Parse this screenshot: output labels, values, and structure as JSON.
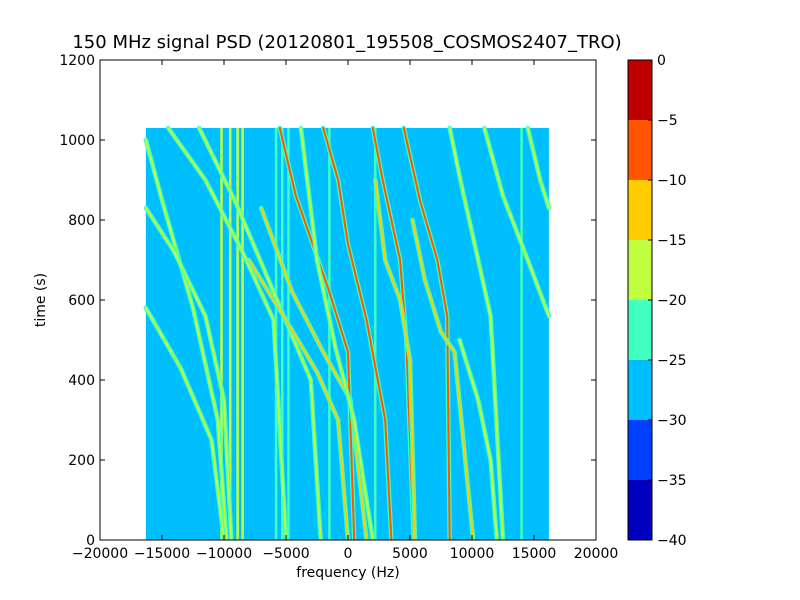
{
  "chart_data": {
    "type": "heatmap",
    "title": "150 MHz signal PSD (20120801_195508_COSMOS2407_TRO)",
    "xlabel": "frequency (Hz)",
    "ylabel": "time (s)",
    "xlim": [
      -20000,
      20000
    ],
    "ylim": [
      0,
      1200
    ],
    "x_ticks": [
      -20000,
      -15000,
      -10000,
      -5000,
      0,
      5000,
      10000,
      15000,
      20000
    ],
    "x_tick_labels": [
      "−20000",
      "−15000",
      "−10000",
      "−5000",
      "0",
      "5000",
      "10000",
      "15000",
      "20000"
    ],
    "y_ticks": [
      0,
      200,
      400,
      600,
      800,
      1000,
      1200
    ],
    "y_tick_labels": [
      "0",
      "200",
      "400",
      "600",
      "800",
      "1000",
      "1200"
    ],
    "data_extent": {
      "x": [
        -16300,
        16200
      ],
      "y": [
        0,
        1030
      ]
    },
    "background_level_db": -27.5,
    "colorbar": {
      "levels": [
        -40,
        -35,
        -30,
        -25,
        -20,
        -15,
        -10,
        -5,
        0
      ],
      "tick_labels": [
        "−40",
        "−35",
        "−30",
        "−25",
        "−20",
        "−15",
        "−10",
        "−5",
        "0"
      ],
      "colors": [
        "#0000bf",
        "#0040ff",
        "#00bfff",
        "#40ffbf",
        "#bfff40",
        "#ffcc00",
        "#ff5500",
        "#bf0000"
      ]
    },
    "vertical_lines": [
      {
        "x": -10200,
        "level_db": -17.5
      },
      {
        "x": -9500,
        "level_db": -17.5
      },
      {
        "x": -8900,
        "level_db": -17.5
      },
      {
        "x": -8500,
        "level_db": -17.5
      },
      {
        "x": -5800,
        "level_db": -22.5
      },
      {
        "x": -5300,
        "level_db": -22.5
      },
      {
        "x": -4800,
        "level_db": -22.5
      },
      {
        "x": -1500,
        "level_db": -22.5
      },
      {
        "x": 2200,
        "level_db": -22.5
      },
      {
        "x": 14000,
        "level_db": -22.5
      }
    ],
    "doppler_traces": [
      {
        "points": [
          [
            -16300,
            1000
          ],
          [
            -15000,
            850
          ],
          [
            -12500,
            580
          ],
          [
            -10500,
            300
          ],
          [
            -9800,
            0
          ]
        ],
        "level_db": -17.5
      },
      {
        "points": [
          [
            -16300,
            830
          ],
          [
            -14000,
            720
          ],
          [
            -11500,
            560
          ],
          [
            -10000,
            350
          ],
          [
            -9400,
            0
          ]
        ],
        "level_db": -17.5
      },
      {
        "points": [
          [
            -16300,
            580
          ],
          [
            -13500,
            430
          ],
          [
            -11000,
            250
          ],
          [
            -10000,
            0
          ]
        ],
        "level_db": -17.5
      },
      {
        "points": [
          [
            -14500,
            1030
          ],
          [
            -11500,
            900
          ],
          [
            -8500,
            720
          ],
          [
            -6000,
            550
          ],
          [
            -5000,
            0
          ]
        ],
        "level_db": -17.5
      },
      {
        "points": [
          [
            -12000,
            1030
          ],
          [
            -9000,
            840
          ],
          [
            -6000,
            620
          ],
          [
            -3000,
            400
          ],
          [
            -2200,
            0
          ]
        ],
        "level_db": -17.5
      },
      {
        "points": [
          [
            -5500,
            1030
          ],
          [
            -4200,
            860
          ],
          [
            -1500,
            620
          ],
          [
            0,
            470
          ],
          [
            500,
            0
          ]
        ],
        "level_db": -7.5
      },
      {
        "points": [
          [
            -7000,
            830
          ],
          [
            -4500,
            620
          ],
          [
            -2000,
            470
          ],
          [
            200,
            350
          ],
          [
            1500,
            0
          ]
        ],
        "level_db": -12.5
      },
      {
        "points": [
          [
            -2000,
            1030
          ],
          [
            -800,
            900
          ],
          [
            0,
            740
          ],
          [
            1500,
            550
          ],
          [
            3000,
            300
          ],
          [
            3500,
            0
          ]
        ],
        "level_db": -7.5
      },
      {
        "points": [
          [
            -8000,
            700
          ],
          [
            -5000,
            550
          ],
          [
            -2500,
            420
          ],
          [
            -800,
            300
          ],
          [
            0,
            0
          ]
        ],
        "level_db": -12.5
      },
      {
        "points": [
          [
            2000,
            1030
          ],
          [
            2800,
            900
          ],
          [
            4200,
            700
          ],
          [
            4700,
            500
          ],
          [
            5300,
            0
          ]
        ],
        "level_db": -7.5
      },
      {
        "points": [
          [
            2200,
            900
          ],
          [
            3000,
            700
          ],
          [
            4200,
            600
          ],
          [
            5000,
            450
          ],
          [
            5400,
            0
          ]
        ],
        "level_db": -12.5
      },
      {
        "points": [
          [
            4500,
            1030
          ],
          [
            5800,
            850
          ],
          [
            7200,
            700
          ],
          [
            8000,
            560
          ],
          [
            8200,
            0
          ]
        ],
        "level_db": -7.5
      },
      {
        "points": [
          [
            5200,
            800
          ],
          [
            6200,
            650
          ],
          [
            7500,
            520
          ],
          [
            8600,
            470
          ],
          [
            10100,
            0
          ]
        ],
        "level_db": -12.5
      },
      {
        "points": [
          [
            8200,
            1030
          ],
          [
            9200,
            880
          ],
          [
            10500,
            700
          ],
          [
            11500,
            560
          ],
          [
            12500,
            0
          ]
        ],
        "level_db": -17.5
      },
      {
        "points": [
          [
            11000,
            1030
          ],
          [
            12500,
            860
          ],
          [
            14500,
            700
          ],
          [
            16200,
            560
          ]
        ],
        "level_db": -17.5
      },
      {
        "points": [
          [
            14500,
            1030
          ],
          [
            15500,
            900
          ],
          [
            16200,
            830
          ]
        ],
        "level_db": -17.5
      },
      {
        "points": [
          [
            -3800,
            1030
          ],
          [
            -2500,
            700
          ],
          [
            -1000,
            480
          ],
          [
            500,
            300
          ],
          [
            2000,
            0
          ]
        ],
        "level_db": -17.5
      },
      {
        "points": [
          [
            9000,
            500
          ],
          [
            10500,
            350
          ],
          [
            11500,
            200
          ],
          [
            12000,
            0
          ]
        ],
        "level_db": -17.5
      }
    ]
  }
}
